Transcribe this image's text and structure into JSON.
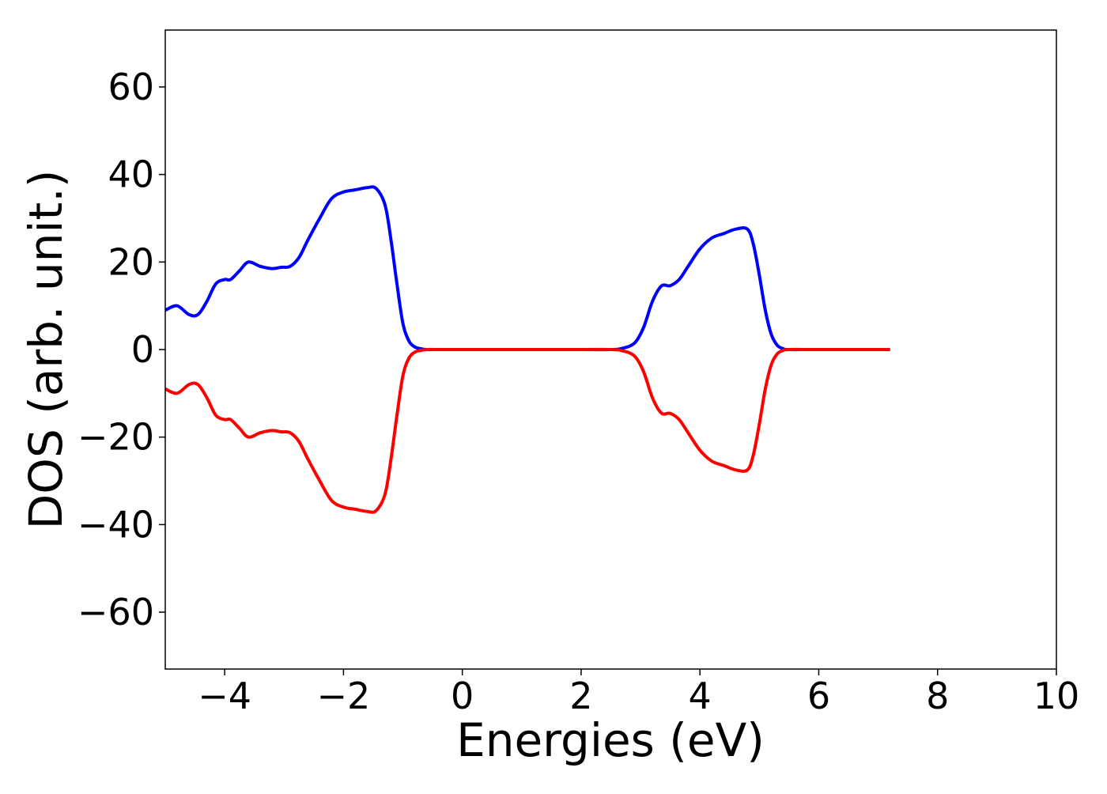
{
  "chart_data": {
    "type": "line",
    "title": "",
    "xlabel": "Energies (eV)",
    "ylabel": "DOS (arb. unit.)",
    "xlim": [
      -5,
      10
    ],
    "ylim": [
      -73,
      73
    ],
    "grid": false,
    "xticks": [
      {
        "value": -4,
        "label": "−4"
      },
      {
        "value": -2,
        "label": "−2"
      },
      {
        "value": 0,
        "label": "0"
      },
      {
        "value": 2,
        "label": "2"
      },
      {
        "value": 4,
        "label": "4"
      },
      {
        "value": 6,
        "label": "6"
      },
      {
        "value": 8,
        "label": "8"
      },
      {
        "value": 10,
        "label": "10"
      }
    ],
    "yticks": [
      {
        "value": -60,
        "label": "−60"
      },
      {
        "value": -40,
        "label": "−40"
      },
      {
        "value": -20,
        "label": "−20"
      },
      {
        "value": 0,
        "label": "0"
      },
      {
        "value": 20,
        "label": "20"
      },
      {
        "value": 40,
        "label": "40"
      },
      {
        "value": 60,
        "label": "60"
      }
    ],
    "series": [
      {
        "color": "#0000ff",
        "x": [
          -5.0,
          -4.8,
          -4.6,
          -4.45,
          -4.3,
          -4.15,
          -4.0,
          -3.9,
          -3.75,
          -3.6,
          -3.4,
          -3.2,
          -3.05,
          -2.9,
          -2.75,
          -2.6,
          -2.4,
          -2.2,
          -2.0,
          -1.8,
          -1.6,
          -1.45,
          -1.3,
          -1.2,
          -1.1,
          -1.0,
          -0.9,
          -0.8,
          -0.7,
          -0.6,
          -0.4,
          0.0,
          1.0,
          2.0,
          2.5,
          2.7,
          2.9,
          3.05,
          3.2,
          3.35,
          3.5,
          3.65,
          3.8,
          4.0,
          4.2,
          4.4,
          4.6,
          4.8,
          4.9,
          5.0,
          5.1,
          5.2,
          5.3,
          5.4,
          5.5,
          6.0,
          7.2
        ],
        "y": [
          9,
          10,
          8,
          8,
          11,
          15,
          16,
          16,
          18,
          20,
          19,
          18.5,
          18.8,
          19,
          21,
          25,
          30,
          34.5,
          36,
          36.5,
          37,
          36.8,
          33,
          25,
          15,
          6,
          2,
          0.6,
          0.2,
          0,
          0,
          0,
          0,
          0,
          0,
          0.3,
          1.5,
          5,
          11,
          14.5,
          14.6,
          16,
          19,
          23,
          25.5,
          26.5,
          27.5,
          27.5,
          24,
          17,
          9,
          3.5,
          1,
          0.2,
          0,
          0,
          0
        ]
      },
      {
        "color": "#ff0000",
        "x": [
          -5.0,
          -4.8,
          -4.6,
          -4.45,
          -4.3,
          -4.15,
          -4.0,
          -3.9,
          -3.75,
          -3.6,
          -3.4,
          -3.2,
          -3.05,
          -2.9,
          -2.75,
          -2.6,
          -2.4,
          -2.2,
          -2.0,
          -1.8,
          -1.6,
          -1.45,
          -1.3,
          -1.2,
          -1.1,
          -1.0,
          -0.9,
          -0.8,
          -0.7,
          -0.6,
          -0.4,
          0.0,
          1.0,
          2.0,
          2.5,
          2.7,
          2.9,
          3.05,
          3.2,
          3.35,
          3.5,
          3.65,
          3.8,
          4.0,
          4.2,
          4.4,
          4.6,
          4.8,
          4.9,
          5.0,
          5.1,
          5.2,
          5.3,
          5.4,
          5.5,
          6.0,
          7.2
        ],
        "y": [
          -9,
          -10,
          -8,
          -8,
          -11,
          -15,
          -16,
          -16,
          -18,
          -20,
          -19,
          -18.5,
          -18.8,
          -19,
          -21,
          -25,
          -30,
          -34.5,
          -36,
          -36.5,
          -37,
          -36.8,
          -33,
          -25,
          -15,
          -6,
          -2,
          -0.6,
          -0.2,
          0,
          0,
          0,
          0,
          0,
          0,
          -0.3,
          -1.5,
          -5,
          -11,
          -14.5,
          -14.6,
          -16,
          -19,
          -23,
          -25.5,
          -26.5,
          -27.5,
          -27.5,
          -24,
          -17,
          -9,
          -3.5,
          -1,
          -0.2,
          0,
          0,
          0
        ]
      }
    ]
  }
}
